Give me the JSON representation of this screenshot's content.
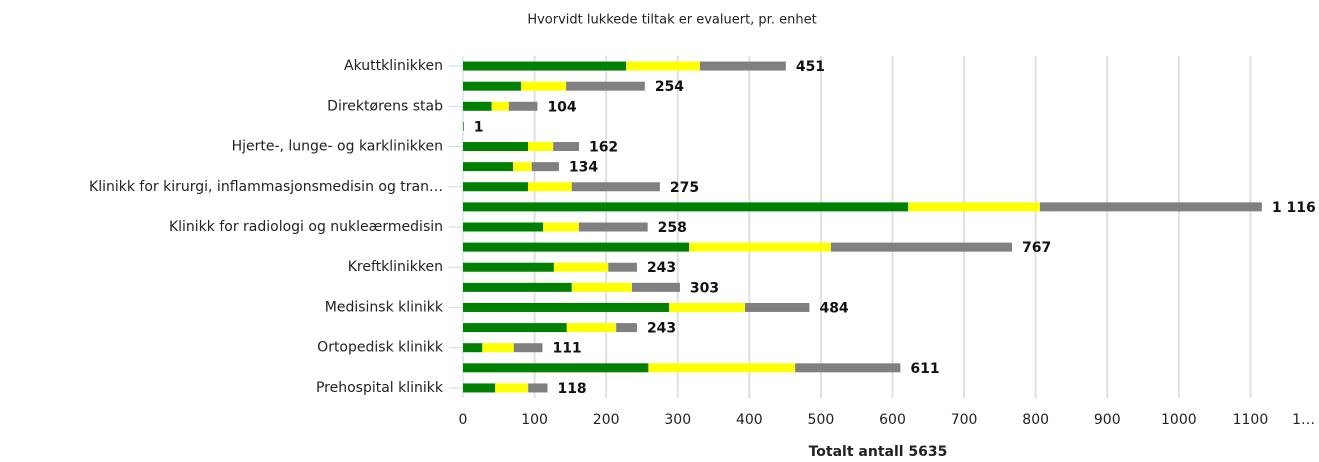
{
  "chart_data": {
    "type": "stacked-barh",
    "title": "Hvorvidt lukkede tiltak er evaluert, pr. enhet",
    "x_label": "Totalt antall 5635",
    "categories": [
      "Akuttklinikken",
      null,
      "Direktørens stab",
      null,
      "Hjerte-, lunge- og karklinikken",
      null,
      "Klinikk for kirurgi, inflammasjonsmedisin og tran…",
      null,
      "Klinikk for radiologi og nukleærmedisin",
      null,
      "Kreftklinikken",
      null,
      "Medisinsk klinikk",
      null,
      "Ortopedisk klinikk",
      null,
      "Prehospital klinikk"
    ],
    "series": [
      {
        "color": "#008000",
        "values": [
          228,
          81,
          40,
          1,
          91,
          70,
          91,
          622,
          112,
          316,
          127,
          152,
          288,
          145,
          27,
          259,
          45
        ]
      },
      {
        "color": "#ffff00",
        "values": [
          103,
          63,
          24,
          0,
          35,
          26,
          61,
          184,
          50,
          198,
          76,
          84,
          106,
          69,
          44,
          205,
          46
        ]
      },
      {
        "color": "#808080",
        "values": [
          120,
          110,
          40,
          0,
          36,
          38,
          123,
          310,
          96,
          253,
          40,
          67,
          90,
          29,
          40,
          147,
          27
        ]
      }
    ],
    "totals": {
      "values": [
        451,
        254,
        104,
        1,
        162,
        134,
        275,
        1116,
        258,
        767,
        243,
        303,
        484,
        243,
        111,
        611,
        118
      ],
      "value_labels": [
        "451",
        "254",
        "104",
        "1",
        "162",
        "134",
        "275",
        "1 116",
        "258",
        "767",
        "243",
        "303",
        "484",
        "243",
        "111",
        "611",
        "118"
      ]
    },
    "xlim": [
      0,
      1200
    ],
    "xticks": [
      0,
      100,
      200,
      300,
      400,
      500,
      600,
      700,
      800,
      900,
      1000,
      1100,
      {
        "value": 1200,
        "label": "1…"
      }
    ],
    "grid": true
  }
}
